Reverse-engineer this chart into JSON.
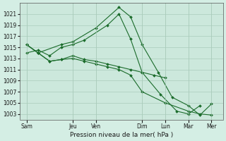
{
  "background_color": "#d4eee4",
  "plot_bg_color": "#cce8dc",
  "grid_color": "#aaccbb",
  "line_color": "#1a6b2a",
  "marker_color": "#1a6b2a",
  "xlabel": "Pression niveau de la mer( hPa )",
  "ylim": [
    1002,
    1023
  ],
  "yticks": [
    1003,
    1005,
    1007,
    1009,
    1011,
    1013,
    1015,
    1017,
    1019,
    1021
  ],
  "xtick_labels": [
    "Sam",
    "Jeu",
    "Ven",
    "Dim",
    "Lun",
    "Mar",
    "Mer"
  ],
  "xtick_positions": [
    0,
    2,
    3,
    5,
    6,
    7,
    8
  ],
  "series": [
    {
      "x": [
        0,
        0.5,
        1.5,
        2.0,
        3.0,
        4.0,
        4.5,
        5.0,
        5.7,
        6.3,
        7.0,
        7.5,
        8.0
      ],
      "y": [
        1015.5,
        1014.0,
        1015.5,
        1016.0,
        1018.5,
        1022.2,
        1020.5,
        1015.5,
        1010.5,
        1006.0,
        1004.5,
        1002.8,
        1004.8
      ]
    },
    {
      "x": [
        0,
        0.5,
        1.0,
        1.5,
        2.0,
        2.5,
        3.5,
        4.0,
        4.5,
        5.0,
        5.8,
        6.5,
        7.0,
        7.5
      ],
      "y": [
        1014.0,
        1014.5,
        1013.5,
        1015.0,
        1015.5,
        1016.3,
        1019.0,
        1021.0,
        1016.5,
        1010.5,
        1006.5,
        1003.5,
        1003.0,
        1004.5
      ]
    },
    {
      "x": [
        0,
        0.5,
        1.0,
        1.5,
        2.0,
        2.5,
        3.0,
        3.5,
        4.0,
        4.5,
        5.0,
        5.5,
        6.0
      ],
      "y": [
        1015.5,
        1014.0,
        1012.5,
        1012.8,
        1013.5,
        1012.8,
        1012.5,
        1012.0,
        1011.5,
        1011.0,
        1010.5,
        1010.0,
        1009.5
      ]
    },
    {
      "x": [
        0,
        0.5,
        1.0,
        1.5,
        2.0,
        2.5,
        3.0,
        3.5,
        4.0,
        4.5,
        5.0,
        6.0,
        7.0,
        7.5,
        8.0
      ],
      "y": [
        1015.5,
        1014.0,
        1012.5,
        1012.8,
        1013.0,
        1012.5,
        1012.0,
        1011.5,
        1011.0,
        1010.0,
        1007.0,
        1005.0,
        1003.5,
        1003.0,
        1002.8
      ]
    }
  ]
}
